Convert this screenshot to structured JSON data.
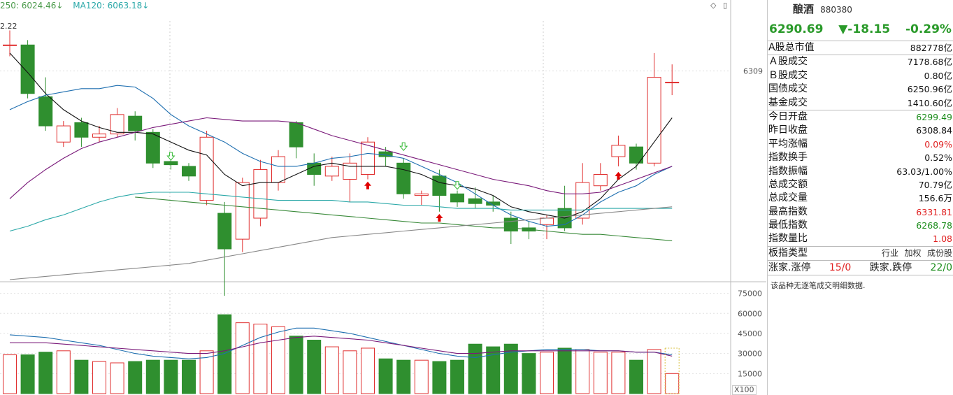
{
  "legend": {
    "ma250": "250: 6024.46↓",
    "ma120": "MA120: 6063.18↓",
    "ma250_color": "#4a9a4a",
    "ma120_color": "#2aa8a8"
  },
  "chart": {
    "corner_value": "2.22",
    "right_price_label": "6309",
    "volume_unit": "X100",
    "volume_ticks": [
      "75000",
      "60000",
      "45000",
      "30000",
      "15000"
    ]
  },
  "toolbar": {
    "diamond_icon": "◇",
    "panel_icon": "▯"
  },
  "chart_data": {
    "type": "candlestick",
    "price_range": [
      6180,
      6345
    ],
    "volume_range": [
      0,
      80000
    ],
    "candles": [
      {
        "o": 6325,
        "c": 6325,
        "h": 6334,
        "l": 6318,
        "v": 29000
      },
      {
        "o": 6325,
        "c": 6295,
        "h": 6328,
        "l": 6292,
        "v": 29000
      },
      {
        "o": 6293,
        "c": 6275,
        "h": 6305,
        "l": 6272,
        "v": 31000
      },
      {
        "o": 6265,
        "c": 6275,
        "h": 6278,
        "l": 6262,
        "v": 32000
      },
      {
        "o": 6277,
        "c": 6268,
        "h": 6280,
        "l": 6262,
        "v": 25000
      },
      {
        "o": 6268,
        "c": 6270,
        "h": 6275,
        "l": 6265,
        "v": 24000
      },
      {
        "o": 6270,
        "c": 6282,
        "h": 6286,
        "l": 6268,
        "v": 23000
      },
      {
        "o": 6281,
        "c": 6272,
        "h": 6284,
        "l": 6266,
        "v": 24000
      },
      {
        "o": 6271,
        "c": 6252,
        "h": 6273,
        "l": 6249,
        "v": 25000
      },
      {
        "o": 6253,
        "c": 6251,
        "h": 6258,
        "l": 6248,
        "v": 25000
      },
      {
        "o": 6250,
        "c": 6244,
        "h": 6252,
        "l": 6241,
        "v": 25000
      },
      {
        "o": 6229,
        "c": 6268,
        "h": 6272,
        "l": 6226,
        "v": 32000
      },
      {
        "o": 6221,
        "c": 6199,
        "h": 6228,
        "l": 6170,
        "v": 59000
      },
      {
        "o": 6205,
        "c": 6240,
        "h": 6243,
        "l": 6197,
        "v": 53000
      },
      {
        "o": 6218,
        "c": 6248,
        "h": 6254,
        "l": 6213,
        "v": 52000
      },
      {
        "o": 6240,
        "c": 6256,
        "h": 6260,
        "l": 6235,
        "v": 50000
      },
      {
        "o": 6277,
        "c": 6262,
        "h": 6278,
        "l": 6255,
        "v": 43000
      },
      {
        "o": 6252,
        "c": 6245,
        "h": 6258,
        "l": 6238,
        "v": 40000
      },
      {
        "o": 6244,
        "c": 6250,
        "h": 6256,
        "l": 6241,
        "v": 35000
      },
      {
        "o": 6242,
        "c": 6252,
        "h": 6258,
        "l": 6228,
        "v": 32000
      },
      {
        "o": 6245,
        "c": 6265,
        "h": 6268,
        "l": 6242,
        "v": 34000
      },
      {
        "o": 6259,
        "c": 6256,
        "h": 6262,
        "l": 6250,
        "v": 26000
      },
      {
        "o": 6252,
        "c": 6233,
        "h": 6255,
        "l": 6230,
        "v": 25000
      },
      {
        "o": 6232,
        "c": 6233,
        "h": 6235,
        "l": 6226,
        "v": 25000
      },
      {
        "o": 6244,
        "c": 6232,
        "h": 6248,
        "l": 6222,
        "v": 24000
      },
      {
        "o": 6233,
        "c": 6228,
        "h": 6235,
        "l": 6225,
        "v": 25000
      },
      {
        "o": 6230,
        "c": 6227,
        "h": 6237,
        "l": 6224,
        "v": 37000
      },
      {
        "o": 6228,
        "c": 6226,
        "h": 6232,
        "l": 6222,
        "v": 35000
      },
      {
        "o": 6218,
        "c": 6210,
        "h": 6222,
        "l": 6202,
        "v": 37000
      },
      {
        "o": 6212,
        "c": 6210,
        "h": 6216,
        "l": 6205,
        "v": 30000
      },
      {
        "o": 6214,
        "c": 6218,
        "h": 6220,
        "l": 6205,
        "v": 31000
      },
      {
        "o": 6224,
        "c": 6212,
        "h": 6238,
        "l": 6210,
        "v": 34000
      },
      {
        "o": 6218,
        "c": 6240,
        "h": 6252,
        "l": 6214,
        "v": 33000
      },
      {
        "o": 6238,
        "c": 6245,
        "h": 6252,
        "l": 6235,
        "v": 31000
      },
      {
        "o": 6256,
        "c": 6263,
        "h": 6269,
        "l": 6250,
        "v": 31000
      },
      {
        "o": 6262,
        "c": 6252,
        "h": 6264,
        "l": 6248,
        "v": 25000
      },
      {
        "o": 6252,
        "c": 6305,
        "h": 6320,
        "l": 6250,
        "v": 33000
      },
      {
        "o": 6302,
        "c": 6302,
        "h": 6313,
        "l": 6294,
        "v": 15000
      }
    ],
    "ma_lines": [
      {
        "color": "#111111",
        "values": [
          6320,
          6308,
          6295,
          6285,
          6278,
          6274,
          6271,
          6271,
          6270,
          6265,
          6260,
          6257,
          6245,
          6238,
          6240,
          6240,
          6245,
          6250,
          6252,
          6250,
          6250,
          6250,
          6248,
          6245,
          6240,
          6238,
          6236,
          6232,
          6225,
          6222,
          6220,
          6218,
          6222,
          6230,
          6242,
          6250,
          6265,
          6280
        ]
      },
      {
        "color": "#1e6fb0",
        "values": [
          6285,
          6290,
          6294,
          6296,
          6298,
          6298,
          6300,
          6299,
          6292,
          6282,
          6275,
          6270,
          6265,
          6258,
          6253,
          6250,
          6250,
          6252,
          6255,
          6256,
          6258,
          6257,
          6255,
          6250,
          6245,
          6240,
          6233,
          6226,
          6220,
          6216,
          6213,
          6214,
          6220,
          6228,
          6234,
          6238,
          6245,
          6250
        ]
      },
      {
        "color": "#7a1a7a",
        "values": [
          6230,
          6240,
          6248,
          6255,
          6261,
          6265,
          6268,
          6271,
          6274,
          6276,
          6278,
          6280,
          6279,
          6278,
          6278,
          6278,
          6277,
          6273,
          6269,
          6266,
          6263,
          6260,
          6257,
          6254,
          6251,
          6248,
          6245,
          6242,
          6240,
          6238,
          6235,
          6233,
          6233,
          6234,
          6238,
          6242,
          6246,
          6250
        ]
      },
      {
        "color": "#2aa8a8",
        "values": [
          6210,
          6213,
          6217,
          6220,
          6224,
          6228,
          6231,
          6233,
          6234,
          6234,
          6234,
          6233,
          6232,
          6231,
          6230,
          6229,
          6229,
          6229,
          6229,
          6228,
          6228,
          6227,
          6226,
          6226,
          6225,
          6224,
          6224,
          6224,
          6223,
          6223,
          6223,
          6223,
          6223,
          6224,
          6224,
          6224,
          6224,
          6224
        ]
      },
      {
        "color": "#3a8a3a",
        "values": [
          null,
          null,
          null,
          null,
          null,
          null,
          null,
          6231,
          6230,
          6229,
          6228,
          6227,
          6226,
          6225,
          6224,
          6223,
          6222,
          6221,
          6220,
          6219,
          6218,
          6217,
          6216,
          6215,
          6215,
          6214,
          6213,
          6212,
          6212,
          6211,
          6210,
          6209,
          6208,
          6208,
          6207,
          6206,
          6205,
          6204
        ]
      },
      {
        "color": "#888888",
        "values": [
          6180,
          6181,
          6182,
          6183,
          6184,
          6185,
          6186,
          6187,
          6188,
          6189,
          6190,
          6192,
          6194,
          6196,
          6198,
          6200,
          6202,
          6204,
          6206,
          6207,
          6208,
          6209,
          6210,
          6211,
          6212,
          6213,
          6214,
          6215,
          6216,
          6217,
          6218,
          6219,
          6220,
          6221,
          6222,
          6223,
          6224,
          6225
        ]
      }
    ],
    "vol_ma_lines": [
      {
        "color": "#1e6fb0",
        "values": [
          44000,
          43000,
          42000,
          40000,
          38000,
          36000,
          33000,
          30000,
          28000,
          27000,
          26000,
          27000,
          30000,
          36000,
          42000,
          46000,
          49000,
          49000,
          47000,
          45000,
          42000,
          39000,
          36000,
          33000,
          30000,
          28000,
          27000,
          29000,
          31000,
          32000,
          33000,
          33000,
          33000,
          32000,
          32000,
          31000,
          31000,
          29000
        ]
      },
      {
        "color": "#7a1a7a",
        "values": [
          38000,
          38000,
          38000,
          37000,
          36000,
          35000,
          34000,
          33000,
          32000,
          31000,
          30000,
          30000,
          32000,
          35000,
          38000,
          40000,
          42000,
          43000,
          42000,
          41000,
          40000,
          38000,
          36000,
          34000,
          32000,
          30000,
          30000,
          31000,
          32000,
          32000,
          32000,
          32000,
          32000,
          32000,
          32000,
          31000,
          31000,
          28000
        ]
      }
    ],
    "markers": [
      {
        "index": 9,
        "type": "down-hollow",
        "price": 6256
      },
      {
        "index": 20,
        "type": "up-red",
        "price": 6238
      },
      {
        "index": 22,
        "type": "down-hollow",
        "price": 6262
      },
      {
        "index": 24,
        "type": "up-red",
        "price": 6218
      },
      {
        "index": 25,
        "type": "down-hollow",
        "price": 6238
      },
      {
        "index": 34,
        "type": "up-red",
        "price": 6244
      }
    ]
  },
  "panel": {
    "name": "酿酒",
    "code": "880380",
    "price": "6290.69",
    "change": "▼-18.15",
    "change_pct": "-0.29%",
    "market_cap": {
      "label": "A股总市值",
      "value": "882778亿"
    },
    "rows": [
      {
        "label": "Ａ股成交",
        "value": "7178.68亿",
        "tone": "dark"
      },
      {
        "label": "Ｂ股成交",
        "value": "0.80亿",
        "tone": "dark"
      },
      {
        "label": "国债成交",
        "value": "6250.96亿",
        "tone": "dark"
      },
      {
        "label": "基金成交",
        "value": "1410.60亿",
        "tone": "dark"
      }
    ],
    "rows2": [
      {
        "label": "今日开盘",
        "value": "6299.49",
        "tone": "green"
      },
      {
        "label": "昨日收盘",
        "value": "6308.84",
        "tone": "dark"
      },
      {
        "label": "平均涨幅",
        "value": "0.09%",
        "tone": "red"
      },
      {
        "label": "指数换手",
        "value": "0.52%",
        "tone": "dark"
      },
      {
        "label": "指数振幅",
        "value": "63.03/1.00%",
        "tone": "dark"
      },
      {
        "label": "总成交额",
        "value": "70.79亿",
        "tone": "dark"
      },
      {
        "label": "总成交量",
        "value": "156.6万",
        "tone": "dark"
      },
      {
        "label": "最高指数",
        "value": "6331.81",
        "tone": "red"
      },
      {
        "label": "最低指数",
        "value": "6268.78",
        "tone": "green"
      },
      {
        "label": "指数量比",
        "value": "1.08",
        "tone": "red"
      }
    ],
    "board_type_label": "板指类型",
    "board_types": [
      "行业",
      "加权",
      "成份股"
    ],
    "up_label": "涨家.涨停",
    "up_value": "15/0",
    "down_label": "跌家.跌停",
    "down_value": "22/0",
    "note": "该品种无逐笔成交明细数据."
  }
}
